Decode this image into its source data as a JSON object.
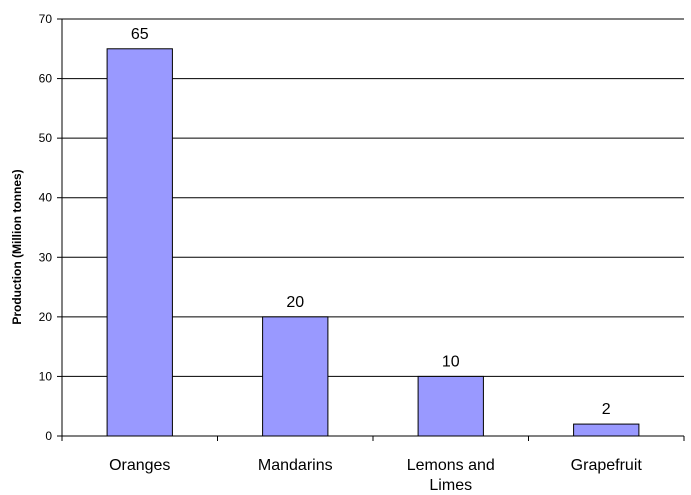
{
  "chart_data": {
    "type": "bar",
    "categories": [
      "Oranges",
      "Mandarins",
      "Lemons and Limes",
      "Grapefruit"
    ],
    "category_lines": [
      [
        "Oranges"
      ],
      [
        "Mandarins"
      ],
      [
        "Lemons and",
        "Limes"
      ],
      [
        "Grapefruit"
      ]
    ],
    "values": [
      65,
      20,
      10,
      2
    ],
    "data_labels": [
      "65",
      "20",
      "10",
      "2"
    ],
    "title": "",
    "xlabel": "",
    "ylabel": "Production (Million tonnes)",
    "ylim": [
      0,
      70
    ],
    "yticks": [
      0,
      10,
      20,
      30,
      40,
      50,
      60,
      70
    ],
    "ytick_labels": [
      "0",
      "10",
      "20",
      "30",
      "40",
      "50",
      "60",
      "70"
    ],
    "grid": true,
    "legend": "none",
    "colors": {
      "bar_fill": "#9999ff",
      "bar_stroke": "#000000",
      "grid": "#000000",
      "axis": "#000000"
    }
  }
}
